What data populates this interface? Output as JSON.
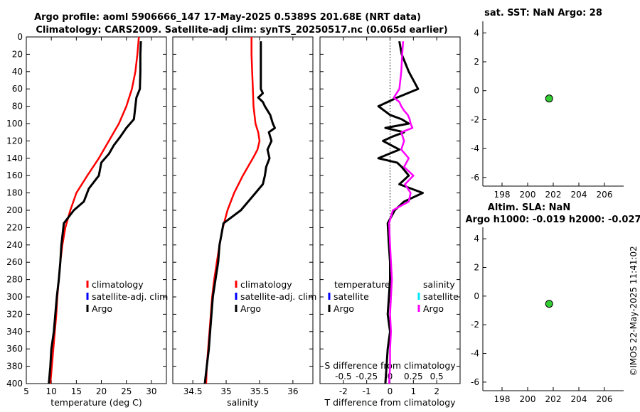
{
  "titles": {
    "line1": "Argo profile: aoml 5906666_147 17-May-2025 0.5389S 201.68E (NRT data)",
    "line2": "Climatology: CARS2009. Satellite-adj clim: synTS_20250517.nc (0.065d earlier)",
    "sst": "sat. SST: NaN Argo: 28",
    "sla1": "Altim. SLA: NaN",
    "sla2": "Argo h1000: -0.019 h2000: -0.027",
    "footer": "©IMOS 22-May-2025 11:41:02"
  },
  "colors": {
    "climatology": "#ff0000",
    "satellite": "#0000ff",
    "argo": "#000000",
    "sal_sat": "#00e5ff",
    "sal_argo": "#ff00ff",
    "marker": "#33cc33"
  },
  "chart_data": [
    {
      "type": "line",
      "name": "temperature",
      "xlabel": "temperature (deg C)",
      "xlim": [
        5,
        33
      ],
      "xticks": [
        5,
        10,
        15,
        20,
        25,
        30
      ],
      "ylim": [
        400,
        0
      ],
      "yticks": [
        0,
        20,
        40,
        60,
        80,
        100,
        120,
        140,
        160,
        180,
        200,
        220,
        240,
        260,
        280,
        300,
        320,
        340,
        360,
        380,
        400
      ],
      "legend": [
        "climatology",
        "satellite-adj. clim",
        "Argo"
      ],
      "series": [
        {
          "name": "climatology",
          "depth": [
            0,
            20,
            40,
            60,
            80,
            100,
            120,
            140,
            160,
            180,
            200,
            220,
            240,
            260,
            280,
            300,
            320,
            340,
            360,
            380,
            400
          ],
          "values": [
            27.5,
            27.2,
            26.8,
            26.1,
            25.0,
            23.5,
            21.5,
            19.5,
            17.2,
            15.0,
            13.8,
            12.8,
            12.2,
            11.8,
            11.5,
            11.2,
            11.0,
            10.7,
            10.4,
            10.1,
            9.8
          ]
        },
        {
          "name": "Argo",
          "depth": [
            5,
            20,
            40,
            60,
            70,
            80,
            95,
            105,
            115,
            125,
            135,
            145,
            160,
            175,
            190,
            200,
            215,
            240,
            260,
            280,
            300,
            320,
            340,
            360,
            380,
            400
          ],
          "values": [
            27.9,
            27.8,
            27.8,
            27.7,
            27.0,
            26.8,
            26.5,
            25.0,
            23.8,
            22.5,
            21.5,
            20.0,
            19.5,
            17.5,
            16.5,
            14.5,
            12.5,
            12.0,
            11.8,
            11.5,
            11.1,
            10.8,
            10.5,
            10.0,
            9.8,
            9.5
          ]
        }
      ]
    },
    {
      "type": "line",
      "name": "salinity",
      "xlabel": "salinity",
      "xlim": [
        34.2,
        36.3
      ],
      "xticks": [
        34.5,
        35,
        35.5,
        36
      ],
      "ylim": [
        400,
        0
      ],
      "legend": [
        "climatology",
        "satellite-adj. clim",
        "Argo"
      ],
      "series": [
        {
          "name": "climatology",
          "depth": [
            0,
            20,
            40,
            60,
            80,
            100,
            110,
            120,
            130,
            140,
            160,
            180,
            200,
            220,
            240,
            260,
            280,
            300,
            320,
            340,
            360,
            380,
            400
          ],
          "values": [
            35.38,
            35.38,
            35.39,
            35.4,
            35.41,
            35.44,
            35.48,
            35.5,
            35.47,
            35.4,
            35.25,
            35.12,
            35.02,
            34.95,
            34.9,
            34.86,
            34.82,
            34.79,
            34.77,
            34.75,
            34.73,
            34.71,
            34.7
          ]
        },
        {
          "name": "Argo",
          "depth": [
            5,
            20,
            40,
            60,
            65,
            70,
            75,
            80,
            85,
            90,
            100,
            105,
            110,
            120,
            130,
            140,
            150,
            160,
            170,
            180,
            200,
            215,
            240,
            260,
            280,
            300,
            320,
            340,
            360,
            380,
            400
          ],
          "values": [
            35.52,
            35.52,
            35.52,
            35.52,
            35.55,
            35.48,
            35.55,
            35.58,
            35.62,
            35.66,
            35.7,
            35.73,
            35.64,
            35.68,
            35.62,
            35.65,
            35.6,
            35.58,
            35.55,
            35.44,
            35.22,
            34.96,
            34.9,
            34.88,
            34.84,
            34.8,
            34.78,
            34.76,
            34.74,
            34.71,
            34.68
          ]
        }
      ]
    },
    {
      "type": "line",
      "name": "differences",
      "xlabel": "T difference from climatology",
      "xlabel_top": "S difference from climatology",
      "xlim": [
        -3,
        3
      ],
      "xticks": [
        -2,
        -1,
        0,
        1,
        2
      ],
      "xticks_top": [
        -0.5,
        -0.25,
        0,
        0.25,
        0.5
      ],
      "ylim": [
        400,
        0
      ],
      "legend_left_title": "temperature",
      "legend_right_title": "salinity",
      "legend_left": [
        "satellite",
        "Argo"
      ],
      "legend_right": [
        "satellite",
        "Argo"
      ],
      "series": [
        {
          "name": "T Argo",
          "depth": [
            5,
            20,
            40,
            60,
            70,
            80,
            90,
            95,
            100,
            105,
            110,
            115,
            120,
            130,
            140,
            145,
            150,
            160,
            170,
            180,
            190,
            200,
            215,
            240,
            260,
            280,
            300,
            320,
            340,
            360,
            380,
            400
          ],
          "values": [
            0.4,
            0.5,
            0.8,
            1.2,
            0.3,
            -0.5,
            0.0,
            0.5,
            0.8,
            -0.2,
            0.6,
            0.1,
            -0.3,
            0.4,
            -0.5,
            0.3,
            0.5,
            0.8,
            0.4,
            1.4,
            0.6,
            0.2,
            -0.1,
            -0.05,
            0.0,
            0.0,
            -0.05,
            -0.1,
            0.0,
            -0.1,
            -0.15,
            -0.2
          ]
        },
        {
          "name": "S Argo",
          "depth": [
            5,
            20,
            40,
            60,
            70,
            75,
            80,
            85,
            90,
            95,
            100,
            105,
            110,
            120,
            130,
            140,
            150,
            160,
            170,
            180,
            190,
            200,
            215,
            240,
            260,
            280,
            300,
            320,
            340,
            360,
            380,
            400
          ],
          "values": [
            0.14,
            0.13,
            0.12,
            0.1,
            0.04,
            0.1,
            0.12,
            0.15,
            0.19,
            0.21,
            0.22,
            0.24,
            0.12,
            0.15,
            0.12,
            0.2,
            0.15,
            0.25,
            0.16,
            0.22,
            0.2,
            0.03,
            -0.01,
            0.0,
            0.01,
            0.02,
            0.01,
            0.0,
            0.01,
            0.0,
            0.0,
            -0.01
          ]
        }
      ]
    },
    {
      "type": "scatter",
      "name": "sat-sst-location",
      "xlim": [
        196.5,
        207.5
      ],
      "ylim": [
        -6.6,
        4.8
      ],
      "xticks": [
        198,
        200,
        202,
        204,
        206
      ],
      "yticks": [
        -6,
        -4,
        -2,
        0,
        2,
        4
      ],
      "points": [
        {
          "x": 201.68,
          "y": -0.54
        }
      ]
    },
    {
      "type": "scatter",
      "name": "altim-sla-location",
      "xlim": [
        196.5,
        207.5
      ],
      "ylim": [
        -6.6,
        4.8
      ],
      "xticks": [
        198,
        200,
        202,
        204,
        206
      ],
      "yticks": [
        -6,
        -4,
        -2,
        0,
        2,
        4
      ],
      "points": [
        {
          "x": 201.68,
          "y": -0.54
        }
      ]
    }
  ]
}
